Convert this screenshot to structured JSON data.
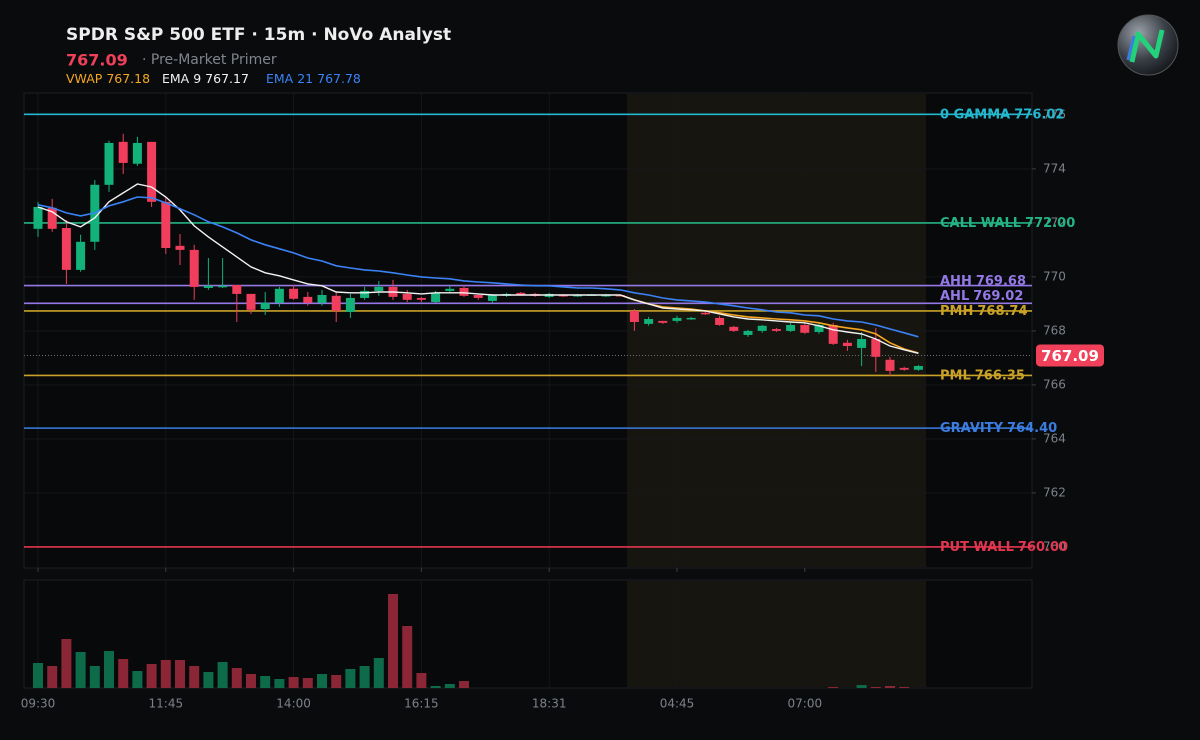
{
  "header": {
    "title": "SPDR S&P 500 ETF · 15m · NoVo Analyst",
    "subtitle": "· Pre-Market Primer"
  },
  "chart_data": [
    {
      "type": "candlestick",
      "x": [
        "09:30",
        null,
        null,
        null,
        null,
        null,
        null,
        null,
        null,
        "11:45",
        null,
        null,
        null,
        null,
        null,
        null,
        null,
        null,
        "14:00",
        null,
        null,
        null,
        null,
        null,
        null,
        null,
        null,
        "16:15",
        null,
        null,
        null,
        null,
        null,
        null,
        null,
        null,
        "18:31",
        null,
        null,
        null,
        null,
        null,
        null,
        null,
        null,
        "04:45",
        null,
        null,
        null,
        null,
        null,
        null,
        null,
        null,
        "07:00",
        null,
        null,
        null,
        null,
        null,
        null,
        null,
        null
      ],
      "open": [
        771.78,
        772.56,
        771.81,
        770.26,
        771.3,
        773.41,
        775.0,
        774.19,
        775.0,
        772.78,
        771.15,
        771.0,
        769.59,
        769.63,
        769.7,
        769.37,
        768.81,
        769.04,
        769.56,
        769.26,
        769.04,
        769.3,
        768.7,
        769.22,
        769.48,
        769.63,
        769.37,
        769.22,
        769.07,
        769.48,
        769.59,
        769.33,
        769.11,
        769.3,
        769.41,
        769.37,
        769.26,
        769.33,
        769.3,
        769.3,
        769.28,
        769.33,
        768.74,
        768.26,
        768.37,
        768.37,
        768.44,
        768.67,
        768.48,
        768.15,
        767.85,
        768.0,
        768.07,
        768.0,
        768.22,
        767.96,
        768.22,
        767.56,
        767.37,
        767.7,
        766.93,
        766.63,
        766.56
      ],
      "high": [
        772.78,
        772.89,
        772.11,
        771.56,
        773.59,
        775.04,
        775.3,
        775.19,
        775.0,
        772.96,
        771.59,
        771.19,
        770.7,
        770.7,
        769.7,
        769.37,
        769.44,
        769.63,
        769.7,
        769.44,
        769.52,
        769.44,
        769.37,
        769.63,
        769.85,
        769.89,
        769.52,
        769.26,
        769.48,
        769.67,
        769.7,
        769.37,
        769.37,
        769.41,
        769.44,
        769.41,
        769.41,
        769.37,
        769.37,
        769.37,
        769.37,
        769.35,
        768.81,
        768.52,
        768.37,
        768.56,
        768.52,
        768.7,
        768.56,
        768.19,
        768.04,
        768.22,
        768.11,
        768.3,
        768.3,
        768.33,
        768.3,
        767.67,
        767.96,
        768.11,
        767.04,
        766.67,
        766.74
      ],
      "low": [
        771.48,
        771.67,
        769.74,
        770.19,
        771.0,
        773.15,
        773.81,
        774.11,
        772.59,
        770.85,
        770.44,
        769.15,
        769.52,
        769.59,
        768.33,
        768.63,
        768.59,
        768.89,
        769.15,
        768.93,
        768.93,
        768.33,
        768.48,
        769.15,
        769.3,
        769.15,
        769.07,
        769.07,
        769.04,
        769.44,
        769.26,
        769.15,
        769.04,
        769.26,
        769.3,
        769.26,
        769.22,
        769.26,
        769.26,
        769.3,
        769.26,
        769.28,
        768.0,
        768.19,
        768.26,
        768.3,
        768.41,
        768.59,
        768.19,
        767.96,
        767.78,
        767.93,
        767.96,
        767.96,
        767.89,
        767.89,
        767.48,
        767.26,
        766.7,
        766.48,
        766.33,
        766.52,
        766.52
      ],
      "close": [
        772.59,
        771.78,
        770.26,
        771.3,
        773.41,
        774.96,
        774.22,
        774.96,
        772.78,
        771.07,
        771.0,
        769.63,
        769.67,
        769.67,
        769.37,
        768.78,
        769.04,
        769.56,
        769.19,
        769.04,
        769.33,
        768.74,
        769.22,
        769.48,
        769.63,
        769.26,
        769.15,
        769.15,
        769.41,
        769.56,
        769.3,
        769.22,
        769.33,
        769.37,
        769.33,
        769.3,
        769.37,
        769.3,
        769.33,
        769.35,
        769.33,
        769.3,
        768.33,
        768.44,
        768.3,
        768.48,
        768.48,
        768.63,
        768.22,
        768.0,
        768.0,
        768.19,
        768.0,
        768.22,
        767.93,
        768.22,
        767.52,
        767.44,
        767.7,
        767.04,
        766.52,
        766.56,
        766.7
      ],
      "up_color": "#12b27a",
      "down_color": "#f03e5c",
      "series": [
        {
          "name": "VWAP",
          "color": "#f5a623",
          "values": [
            null,
            null,
            null,
            null,
            null,
            null,
            null,
            null,
            null,
            null,
            null,
            null,
            null,
            null,
            null,
            null,
            null,
            null,
            null,
            null,
            null,
            null,
            null,
            null,
            null,
            null,
            null,
            null,
            null,
            null,
            null,
            null,
            null,
            null,
            null,
            null,
            null,
            null,
            null,
            null,
            null,
            769.33,
            769.15,
            769.0,
            768.89,
            768.85,
            768.81,
            768.74,
            768.67,
            768.59,
            768.52,
            768.48,
            768.44,
            768.41,
            768.37,
            768.3,
            768.19,
            768.11,
            768.04,
            767.89,
            767.56,
            767.33,
            767.18
          ]
        },
        {
          "name": "EMA 9",
          "color": "#f2f2f2",
          "values": [
            772.59,
            772.41,
            772.04,
            771.85,
            772.19,
            772.78,
            773.11,
            773.44,
            773.33,
            772.96,
            772.48,
            771.89,
            771.48,
            771.11,
            770.74,
            770.37,
            770.15,
            770.04,
            769.89,
            769.74,
            769.67,
            769.44,
            769.41,
            769.41,
            769.44,
            769.44,
            769.41,
            769.37,
            769.41,
            769.41,
            769.41,
            769.37,
            769.33,
            769.33,
            769.33,
            769.33,
            769.33,
            769.33,
            769.33,
            769.33,
            769.33,
            769.33,
            769.15,
            769.0,
            768.85,
            768.81,
            768.78,
            768.74,
            768.63,
            768.52,
            768.44,
            768.41,
            768.37,
            768.33,
            768.3,
            768.19,
            768.04,
            767.96,
            767.89,
            767.7,
            767.44,
            767.3,
            767.17
          ]
        },
        {
          "name": "EMA 21",
          "color": "#3b82f6",
          "values": [
            772.67,
            772.56,
            772.37,
            772.26,
            772.37,
            772.63,
            772.78,
            772.96,
            772.93,
            772.74,
            772.52,
            772.3,
            772.04,
            771.85,
            771.63,
            771.37,
            771.19,
            771.04,
            770.89,
            770.7,
            770.59,
            770.41,
            770.33,
            770.26,
            770.22,
            770.15,
            770.07,
            770.0,
            769.96,
            769.93,
            769.85,
            769.81,
            769.78,
            769.74,
            769.7,
            769.67,
            769.67,
            769.63,
            769.59,
            769.59,
            769.56,
            769.52,
            769.41,
            769.33,
            769.22,
            769.15,
            769.11,
            769.07,
            769.0,
            768.93,
            768.85,
            768.78,
            768.7,
            768.67,
            768.59,
            768.56,
            768.44,
            768.37,
            768.33,
            768.22,
            768.07,
            767.93,
            767.78
          ]
        }
      ],
      "levels": [
        {
          "name": "0 GAMMA",
          "value": 776.02,
          "value_label": "776.02",
          "color": "#22b8cf"
        },
        {
          "name": "CALL WALL",
          "value": 772,
          "value_label": "772.00",
          "color": "#24b483"
        },
        {
          "name": "AHH",
          "value": 769.68,
          "value_label": "769.68",
          "color": "#9479e6"
        },
        {
          "name": "AHL",
          "value": 769.02,
          "value_label": "769.02",
          "color": "#9479e6"
        },
        {
          "name": "PMH",
          "value": 768.74,
          "value_label": "768.74",
          "color": "#c9a227"
        },
        {
          "name": "PML",
          "value": 766.35,
          "value_label": "766.35",
          "color": "#c9a227"
        },
        {
          "name": "GRAVITY",
          "value": 764.4,
          "value_label": "764.40",
          "color": "#3b7de0"
        },
        {
          "name": "PUT WALL",
          "value": 760,
          "value_label": "760.00",
          "color": "#e2364f"
        }
      ],
      "current_price": 767.09,
      "ylim": [
        759.22,
        776.81
      ],
      "yticks": [
        760,
        762,
        764,
        766,
        768,
        770,
        772,
        774,
        776
      ],
      "grid": true
    },
    {
      "type": "bar",
      "values": [
        25,
        22,
        49,
        36,
        22,
        37,
        29,
        17,
        24,
        28,
        28,
        22,
        16,
        26,
        20,
        14,
        12,
        9,
        11,
        10,
        14,
        13,
        19,
        22,
        30,
        94,
        62,
        15,
        2,
        4,
        7,
        0,
        0,
        0,
        0,
        0,
        0,
        0,
        0,
        0,
        0,
        0,
        0,
        0,
        0,
        0,
        0,
        0,
        0,
        0,
        0,
        0,
        0,
        0,
        0,
        0,
        1,
        0,
        3,
        1,
        2,
        1,
        0
      ],
      "up_color": "#0e6b4a",
      "down_color": "#8a2636",
      "ylim": [
        0,
        108
      ]
    }
  ]
}
